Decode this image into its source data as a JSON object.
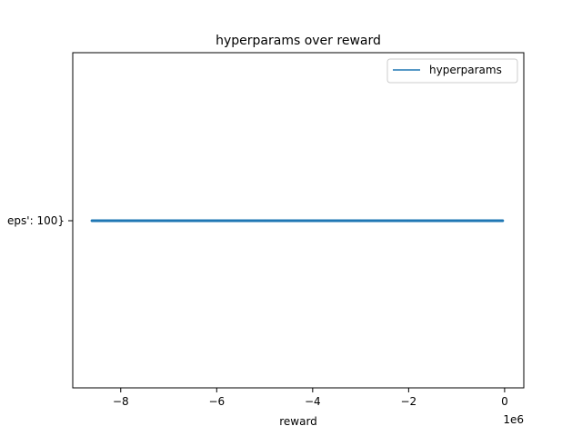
{
  "colors": {
    "series": "#1f77b4",
    "axes": "#000000",
    "background": "#ffffff"
  },
  "chart_data": {
    "type": "line",
    "title": "hyperparams over reward",
    "xlabel": "reward",
    "ylabel": "",
    "x_offset_label": "1e6",
    "x_scale": 1000000,
    "xlim": [
      -9000000,
      400000
    ],
    "x_ticks": [
      -8000000,
      -6000000,
      -4000000,
      -2000000,
      0
    ],
    "x_tick_labels": [
      "−8",
      "−6",
      "−4",
      "−2",
      "0"
    ],
    "y_categories": [
      "eps': 100}"
    ],
    "grid": false,
    "legend": {
      "position": "top-right",
      "entries": [
        "hyperparams"
      ]
    },
    "series": [
      {
        "name": "hyperparams",
        "x": [
          -8600000,
          -8000000,
          -7000000,
          -6000000,
          -5000000,
          -4000000,
          -3000000,
          -2000000,
          -1000000,
          -40000
        ],
        "y": [
          "eps': 100}",
          "eps': 100}",
          "eps': 100}",
          "eps': 100}",
          "eps': 100}",
          "eps': 100}",
          "eps': 100}",
          "eps': 100}",
          "eps': 100}",
          "eps': 100}"
        ]
      }
    ]
  }
}
